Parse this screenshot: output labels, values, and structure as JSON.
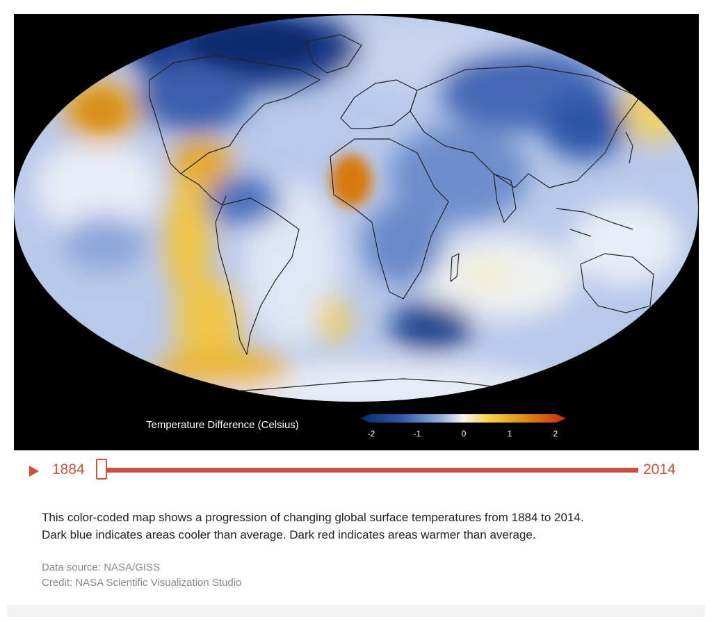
{
  "map": {
    "legend": {
      "title": "Temperature Difference (Celsius)",
      "ticks": [
        "-2",
        "-1",
        "0",
        "1",
        "2"
      ],
      "colors": [
        "#0a2a6a",
        "#2c58a6",
        "#9bb3df",
        "#f4f4f0",
        "#f6d44a",
        "#e09418",
        "#c62c0e"
      ]
    },
    "colors": {
      "background": "#000000",
      "ocean_base": "#b9c9ea",
      "deep_cool": "#12307a",
      "cool": "#4c72bd",
      "neutral": "#eef0f6",
      "warm": "#f0c23a",
      "hot": "#d3650f"
    }
  },
  "timeline": {
    "start_year": "1884",
    "end_year": "2014",
    "current_position": 0,
    "accent_color": "#c95340"
  },
  "caption": {
    "line1": "This color-coded map shows a progression of changing global surface temperatures from 1884 to 2014.",
    "line2": "Dark blue indicates areas cooler than average. Dark red indicates areas warmer than average."
  },
  "credits": {
    "source": "Data source: NASA/GISS",
    "credit": "Credit: NASA Scientific Visualization Studio"
  }
}
